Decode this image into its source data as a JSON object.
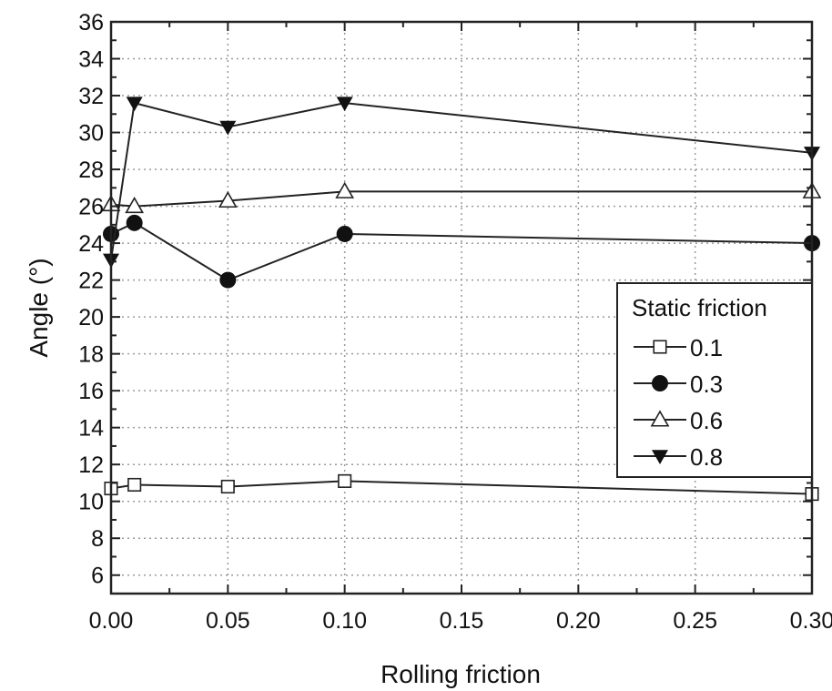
{
  "chart_data": {
    "type": "line",
    "title": "",
    "xlabel": "Rolling friction",
    "ylabel": "Angle (°)",
    "xlim": [
      0,
      0.3
    ],
    "ylim": [
      5,
      36
    ],
    "x_ticks": [
      "0.00",
      "0.05",
      "0.10",
      "0.15",
      "0.20",
      "0.25",
      "0.30"
    ],
    "y_ticks": [
      "6",
      "8",
      "10",
      "12",
      "14",
      "16",
      "18",
      "20",
      "22",
      "24",
      "26",
      "28",
      "30",
      "32",
      "34",
      "36"
    ],
    "grid": true,
    "legend": {
      "title": "Static friction",
      "placement": "right"
    },
    "x": [
      0,
      0.01,
      0.05,
      0.1,
      0.3
    ],
    "series": [
      {
        "name": "0.1",
        "marker": "open-square",
        "values": [
          10.7,
          10.9,
          10.8,
          11.1,
          10.4
        ]
      },
      {
        "name": "0.3",
        "marker": "filled-circle",
        "values": [
          24.5,
          25.1,
          22.0,
          24.5,
          24.0
        ]
      },
      {
        "name": "0.6",
        "marker": "open-triangle-up",
        "values": [
          26.1,
          26.0,
          26.3,
          26.8,
          26.8
        ]
      },
      {
        "name": "0.8",
        "marker": "filled-triangle-down",
        "values": [
          23.1,
          31.6,
          30.3,
          31.6,
          28.9
        ]
      }
    ],
    "colors": {
      "line": "#222222",
      "grid": "#9a9a9a"
    }
  }
}
